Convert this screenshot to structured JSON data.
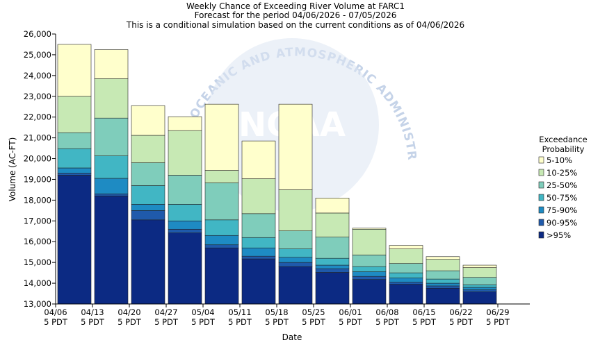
{
  "chart_data": {
    "type": "bar",
    "stacked": true,
    "title_lines": [
      "Weekly Chance of Exceeding River Volume at FARC1",
      "Forecast for the period 04/06/2026 - 07/05/2026",
      "This is a conditional simulation based on the current conditions as of 04/06/2026"
    ],
    "xlabel": "Date",
    "ylabel": "Volume (AC-FT)",
    "ylim": [
      13000,
      26000
    ],
    "yticks": [
      13000,
      14000,
      15000,
      16000,
      17000,
      18000,
      19000,
      20000,
      21000,
      22000,
      23000,
      24000,
      25000,
      26000
    ],
    "ytick_labels": [
      "13,000",
      "14,000",
      "15,000",
      "16,000",
      "17,000",
      "18,000",
      "19,000",
      "20,000",
      "21,000",
      "22,000",
      "23,000",
      "24,000",
      "25,000",
      "26,000"
    ],
    "xticks": [
      {
        "date": "04/06",
        "sub": "5 PDT"
      },
      {
        "date": "04/13",
        "sub": "5 PDT"
      },
      {
        "date": "04/20",
        "sub": "5 PDT"
      },
      {
        "date": "04/27",
        "sub": "5 PDT"
      },
      {
        "date": "05/04",
        "sub": "5 PDT"
      },
      {
        "date": "05/11",
        "sub": "5 PDT"
      },
      {
        "date": "05/18",
        "sub": "5 PDT"
      },
      {
        "date": "05/25",
        "sub": "5 PDT"
      },
      {
        "date": "06/01",
        "sub": "5 PDT"
      },
      {
        "date": "06/08",
        "sub": "5 PDT"
      },
      {
        "date": "06/15",
        "sub": "5 PDT"
      },
      {
        "date": "06/22",
        "sub": "5 PDT"
      },
      {
        "date": "06/29",
        "sub": "5 PDT"
      }
    ],
    "grid": false,
    "legend_title": [
      "Exceedance",
      "Probability"
    ],
    "legend_position": "right",
    "series": [
      {
        "name": ">95%",
        "color": "#0c2a83",
        "tops": [
          19200,
          18200,
          17050,
          16420,
          15700,
          15170,
          14800,
          14520,
          14180,
          13950,
          13760,
          13580
        ]
      },
      {
        "name": "90-95%",
        "color": "#1f5aab",
        "tops": [
          19300,
          18300,
          17500,
          16600,
          15850,
          15300,
          15000,
          14700,
          14330,
          14050,
          13870,
          13680
        ]
      },
      {
        "name": "75-90%",
        "color": "#1e8bc3",
        "tops": [
          19550,
          19050,
          17800,
          17000,
          16300,
          15700,
          15250,
          14870,
          14550,
          14250,
          14000,
          13800
        ]
      },
      {
        "name": "50-75%",
        "color": "#41b6c4",
        "tops": [
          20480,
          20130,
          18700,
          17800,
          17050,
          16200,
          15650,
          15200,
          14800,
          14500,
          14200,
          13920
        ]
      },
      {
        "name": "25-50%",
        "color": "#7fcdbb",
        "tops": [
          21250,
          21950,
          19800,
          19200,
          18830,
          17350,
          16520,
          16220,
          15360,
          14950,
          14600,
          14280
        ]
      },
      {
        "name": "10-25%",
        "color": "#c7e9b4",
        "tops": [
          23000,
          23850,
          21120,
          21350,
          19430,
          19030,
          18500,
          17380,
          16600,
          15650,
          15150,
          14750
        ]
      },
      {
        "name": "5-10%",
        "color": "#ffffcc",
        "tops": [
          25500,
          25250,
          22550,
          22020,
          22620,
          20850,
          22620,
          18100,
          16650,
          15820,
          15280,
          14870
        ]
      }
    ],
    "legend_order": [
      "5-10%",
      "10-25%",
      "25-50%",
      "50-75%",
      "75-90%",
      "90-95%",
      ">95%"
    ]
  },
  "watermark": {
    "arc_text": "OCEANIC AND ATMOSPHERIC ADMINISTRATION",
    "center_text": "NOAA"
  }
}
